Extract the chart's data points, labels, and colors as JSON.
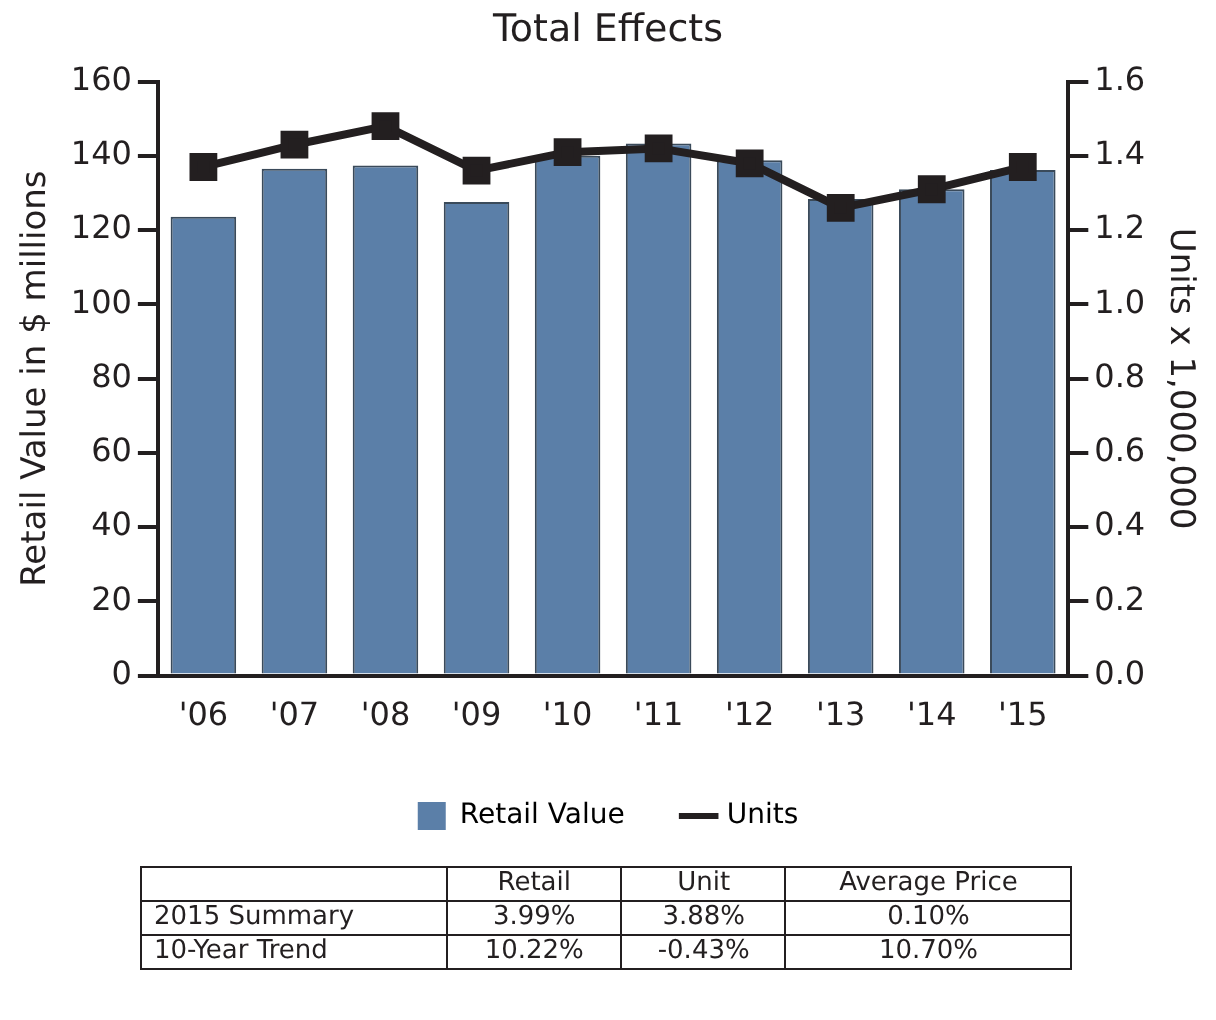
{
  "chart_data": {
    "type": "bar",
    "title": "Total Effects",
    "ylabel": "Retail Value in $ millions",
    "y2label": "Units x 1,000,000",
    "categories": [
      "'06",
      "'07",
      "'08",
      "'09",
      "'10",
      "'11",
      "'12",
      "'13",
      "'14",
      "'15"
    ],
    "series": [
      {
        "name": "Retail Value",
        "color": "#5b7fa8",
        "values": [
          123.6,
          136.5,
          137.4,
          127.6,
          140,
          143.3,
          138.8,
          128.4,
          131,
          136.2
        ]
      },
      {
        "name": "Units",
        "type": "line",
        "axis": "y2",
        "color": "#231f20",
        "values": [
          1.37,
          1.43,
          1.48,
          1.36,
          1.41,
          1.42,
          1.38,
          1.26,
          1.31,
          1.37
        ]
      }
    ],
    "ylim": [
      0,
      160
    ],
    "yticks": [
      0,
      20,
      40,
      60,
      80,
      100,
      120,
      140,
      160
    ],
    "y2lim": [
      0,
      1.6
    ],
    "y2ticks": [
      {
        "value": 0,
        "label": "0.0"
      },
      {
        "value": 0.2,
        "label": "0.2"
      },
      {
        "value": 0.4,
        "label": "0.4"
      },
      {
        "value": 0.6,
        "label": "0.6"
      },
      {
        "value": 0.8,
        "label": "0.8"
      },
      {
        "value": 1,
        "label": "1.0"
      },
      {
        "value": 1.2,
        "label": "1.2"
      },
      {
        "value": 1.4,
        "label": "1.4"
      },
      {
        "value": 1.6,
        "label": "1.6"
      }
    ],
    "marker": "square",
    "legend": "bottom",
    "grid": false,
    "annotations": [
      "Retail",
      "Unit",
      "Average Price",
      "2015 Summary",
      "3.99%",
      "3.88%",
      "0.10%",
      "10-Year Trend",
      "10.22%",
      "-0.43%",
      "10.70%"
    ]
  }
}
